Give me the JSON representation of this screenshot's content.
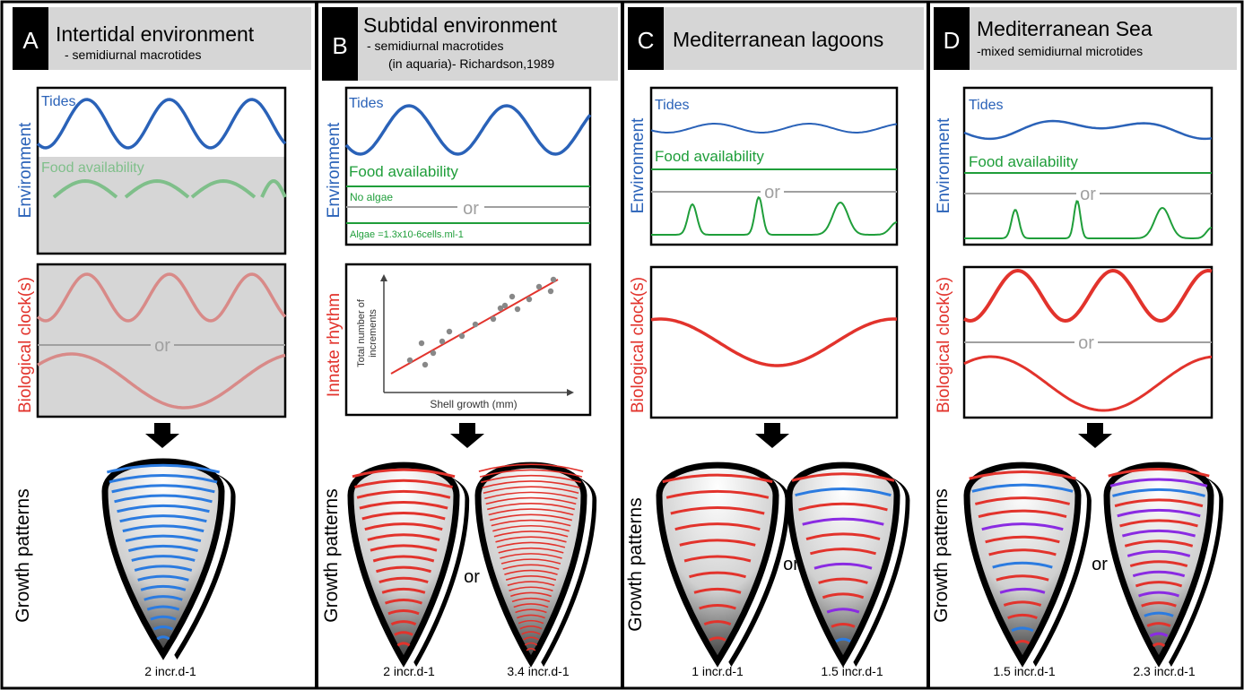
{
  "panels": [
    {
      "letter": "A",
      "title": "Intertidal environment",
      "subtitle_lines": [
        "- semidiurnal macrotides"
      ],
      "side_label_top": "Environment",
      "side_label_mid": "Biological clock(s)",
      "tides_label": "Tides",
      "food_label": "Food availability",
      "or_label": "or",
      "growth_label": "Growth patterns",
      "outputs": [
        "2 incr.d-1"
      ]
    },
    {
      "letter": "B",
      "title": "Subtidal environment",
      "subtitle_lines": [
        "- semidiurnal macrotides",
        "(in aquaria)- Richardson,1989"
      ],
      "side_label_top": "Environment",
      "side_label_mid": "Innate rhythm",
      "tides_label": "Tides",
      "food_label": "Food availability",
      "no_algae_label": "No algae",
      "or_label": "or",
      "algae_label": "Algae =1.3x10-6cells.ml-1",
      "growth_label": "Growth patterns",
      "scatter_ylabel_lines": [
        "Total number of",
        "increments"
      ],
      "scatter_xlabel": "Shell growth (mm)",
      "between_or": "or",
      "outputs": [
        "2 incr.d-1",
        "3.4 incr.d-1"
      ]
    },
    {
      "letter": "C",
      "title": "Mediterranean lagoons",
      "subtitle_lines": [],
      "side_label_top": "Environment",
      "side_label_mid": "Biological clock(s)",
      "tides_label": "Tides",
      "food_label": "Food availability",
      "or_label": "or",
      "growth_label": "Growth patterns",
      "between_or": "or",
      "outputs": [
        "1 incr.d-1",
        "1.5 incr.d-1"
      ]
    },
    {
      "letter": "D",
      "title": "Mediterranean Sea",
      "subtitle_lines": [
        "-mixed semidiurnal microtides"
      ],
      "side_label_top": "Environment",
      "side_label_mid": "Biological clock(s)",
      "tides_label": "Tides",
      "food_label": "Food availability",
      "or_label": "or",
      "growth_label": "Growth patterns",
      "between_or": "or",
      "outputs": [
        "1.5 incr.d-1",
        "2.3 incr.d-1"
      ]
    }
  ],
  "colors": {
    "tides": "#2a62b8",
    "food": "#1f9e3a",
    "clock": "#e2332c",
    "clock_faded": "#d88a88",
    "food_faded": "#7fbf8a",
    "gray": "#a0a0a0",
    "header_bg": "#d6d6d6",
    "letter_bg": "#000000",
    "blue_line": "#2b7be0",
    "purple_line": "#8a2be2"
  }
}
